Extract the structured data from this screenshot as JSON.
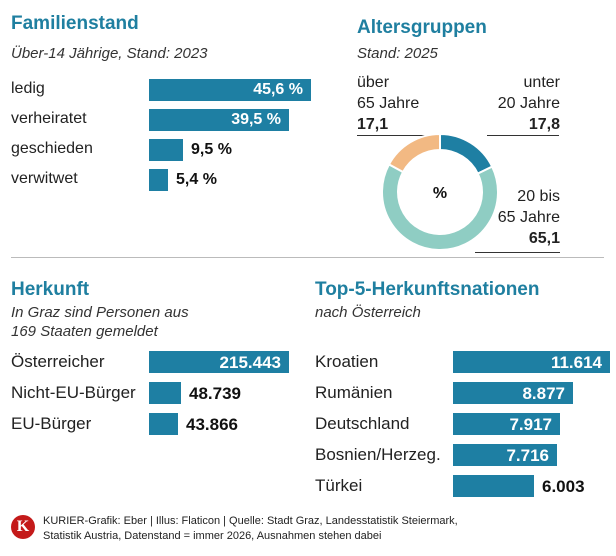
{
  "chart_data": [
    {
      "type": "bar",
      "title": "Familienstand",
      "subtitle": "Über-14 Jährige, Stand: 2023",
      "categories": [
        "ledig",
        "verheiratet",
        "geschieden",
        "verwitwet"
      ],
      "values": [
        45.6,
        39.5,
        9.5,
        5.4
      ],
      "value_labels": [
        "45,6 %",
        "39,5 %",
        "9,5 %",
        "5,4 %"
      ],
      "color": "#1e7fa3"
    },
    {
      "type": "pie",
      "title": "Altersgruppen",
      "subtitle": "Stand: 2025",
      "center_label": "%",
      "slices": [
        {
          "name": "über 65 Jahre",
          "name_lines": [
            "über",
            "65 Jahre"
          ],
          "value": 17.1,
          "value_label": "17,1",
          "color": "#f2b983"
        },
        {
          "name": "unter 20 Jahre",
          "name_lines": [
            "unter",
            "20 Jahre"
          ],
          "value": 17.8,
          "value_label": "17,8",
          "color": "#1e7fa3"
        },
        {
          "name": "20 bis 65 Jahre",
          "name_lines": [
            "20 bis",
            "65 Jahre"
          ],
          "value": 65.1,
          "value_label": "65,1",
          "color": "#8fcdc3"
        }
      ]
    },
    {
      "type": "bar",
      "title": "Herkunft",
      "subtitle_lines": [
        "In Graz sind Personen aus",
        "169 Staaten gemeldet"
      ],
      "categories": [
        "Österreicher",
        "Nicht-EU-Bürger",
        "EU-Bürger"
      ],
      "values": [
        215443,
        48739,
        43866
      ],
      "value_labels": [
        "215.443",
        "48.739",
        "43.866"
      ],
      "color": "#1e7fa3"
    },
    {
      "type": "bar",
      "title": "Top-5-Herkunftsnationen",
      "subtitle": "nach Österreich",
      "categories": [
        "Kroatien",
        "Rumänien",
        "Deutschland",
        "Bosnien/Herzeg.",
        "Türkei"
      ],
      "values": [
        11614,
        8877,
        7917,
        7716,
        6003
      ],
      "value_labels": [
        "11.614",
        "8.877",
        "7.917",
        "7.716",
        "6.003"
      ],
      "color": "#1e7fa3"
    }
  ],
  "footer": {
    "logo_letter": "K",
    "lines": [
      "KURIER-Grafik: Eber | Illus: Flaticon | Quelle: Stadt Graz, Landesstatistik Steiermark,",
      "Statistik Austria, Datenstand = immer 2026, Ausnahmen stehen dabei"
    ]
  }
}
